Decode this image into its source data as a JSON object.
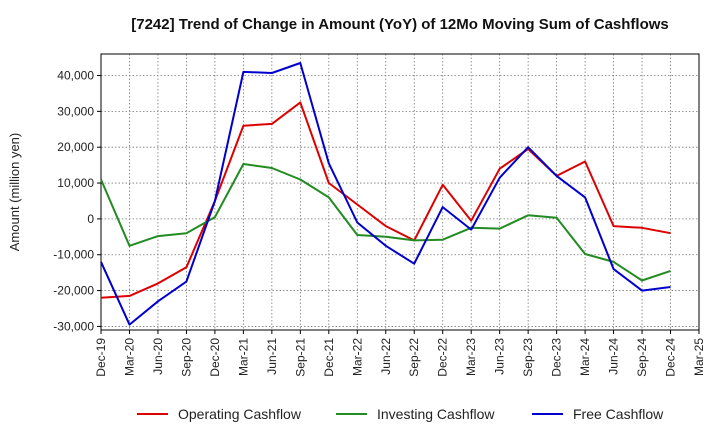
{
  "chart_data": {
    "type": "line",
    "title": "[7242]  Trend of Change in Amount (YoY) of 12Mo Moving Sum of Cashflows",
    "xlabel": "",
    "ylabel": "Amount (million yen)",
    "ylim": [
      -31000,
      46000
    ],
    "yticks": [
      -30000,
      -20000,
      -10000,
      0,
      10000,
      20000,
      30000,
      40000
    ],
    "ytick_labels": [
      "-30,000",
      "-20,000",
      "-10,000",
      "0",
      "10,000",
      "20,000",
      "30,000",
      "40,000"
    ],
    "categories": [
      "Dec-19",
      "Mar-20",
      "Jun-20",
      "Sep-20",
      "Dec-20",
      "Mar-21",
      "Jun-21",
      "Sep-21",
      "Dec-21",
      "Mar-22",
      "Jun-22",
      "Sep-22",
      "Dec-22",
      "Mar-23",
      "Jun-23",
      "Sep-23",
      "Dec-23",
      "Mar-24",
      "Jun-24",
      "Sep-24",
      "Dec-24",
      "Mar-25"
    ],
    "grid": true,
    "legend_position": "bottom",
    "series": [
      {
        "name": "Operating Cashflow",
        "color": "#dd0000",
        "values": [
          -22000,
          -21500,
          -18000,
          -13500,
          5000,
          26000,
          26500,
          32500,
          10000,
          4000,
          -2000,
          -6000,
          9500,
          -500,
          14000,
          19500,
          12000,
          16000,
          -2000,
          -2500,
          -4000,
          null
        ]
      },
      {
        "name": "Investing Cashflow",
        "color": "#228b22",
        "values": [
          11000,
          -7500,
          -4800,
          -4000,
          500,
          15300,
          14200,
          11000,
          6000,
          -4500,
          -5000,
          -6000,
          -5800,
          -2500,
          -2700,
          1000,
          300,
          -9800,
          -12000,
          -17200,
          -14500,
          null
        ]
      },
      {
        "name": "Free Cashflow",
        "color": "#0000cc",
        "values": [
          -12000,
          -29500,
          -23000,
          -17500,
          5000,
          41000,
          40700,
          43500,
          15500,
          -1000,
          -7500,
          -12500,
          3300,
          -3000,
          11500,
          20000,
          12000,
          6000,
          -14000,
          -20000,
          -19000,
          null
        ]
      }
    ]
  }
}
